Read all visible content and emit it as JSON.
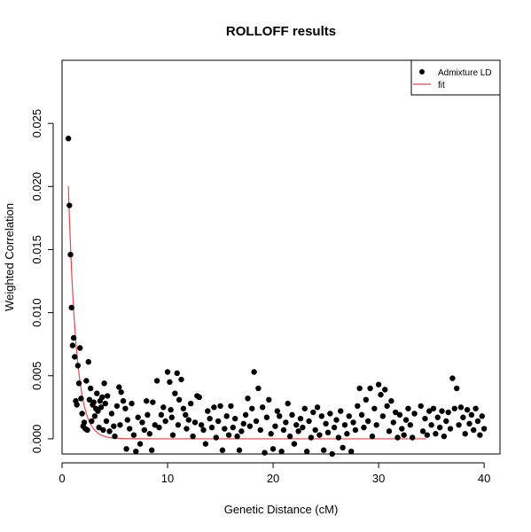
{
  "chart_data": {
    "type": "scatter",
    "title": "ROLLOFF results",
    "xlabel": "Genetic Distance (cM)",
    "ylabel": "Weighted Correlation",
    "xlim": [
      0,
      41.5
    ],
    "ylim": [
      -0.0012,
      0.03
    ],
    "x_ticks": [
      0,
      10,
      20,
      30,
      40
    ],
    "y_ticks": [
      0.0,
      0.005,
      0.01,
      0.015,
      0.02,
      0.025
    ],
    "y_tick_labels": [
      "0.000",
      "0.005",
      "0.010",
      "0.015",
      "0.020",
      "0.025"
    ],
    "grid": false,
    "legend": {
      "placement": "top-right",
      "entries": [
        {
          "label": "Admixture LD",
          "type": "point",
          "color": "#000000"
        },
        {
          "label": "fit",
          "type": "line",
          "color": "#e8474a"
        }
      ]
    },
    "colors": {
      "points": "#000000",
      "fit": "#e8474a"
    },
    "series": [
      {
        "name": "Admixture LD",
        "type": "scatter",
        "points": [
          [
            0.6,
            0.0238
          ],
          [
            0.7,
            0.0185
          ],
          [
            0.8,
            0.0146
          ],
          [
            0.9,
            0.0104
          ],
          [
            1.0,
            0.0074
          ],
          [
            1.1,
            0.008
          ],
          [
            1.2,
            0.0065
          ],
          [
            1.3,
            0.003
          ],
          [
            1.4,
            0.0027
          ],
          [
            1.5,
            0.0058
          ],
          [
            1.6,
            0.0044
          ],
          [
            1.7,
            0.0072
          ],
          [
            1.8,
            0.0032
          ],
          [
            1.9,
            0.002
          ],
          [
            2.0,
            0.001
          ],
          [
            2.1,
            0.0013
          ],
          [
            2.2,
            0.0008
          ],
          [
            2.3,
            0.0046
          ],
          [
            2.4,
            0.0007
          ],
          [
            2.5,
            0.0061
          ],
          [
            2.6,
            0.0031
          ],
          [
            2.7,
            0.004
          ],
          [
            2.8,
            0.0014
          ],
          [
            2.9,
            0.0027
          ],
          [
            3.0,
            0.0029
          ],
          [
            3.1,
            0.0018
          ],
          [
            3.2,
            0.0024
          ],
          [
            3.3,
            0.0036
          ],
          [
            3.4,
            0.0022
          ],
          [
            3.5,
            0.0009
          ],
          [
            3.6,
            0.003
          ],
          [
            3.7,
            0.0025
          ],
          [
            3.8,
            0.0033
          ],
          [
            3.9,
            0.0007
          ],
          [
            4.0,
            0.0044
          ],
          [
            4.1,
            0.0028
          ],
          [
            4.2,
            0.0014
          ],
          [
            4.3,
            0.0034
          ],
          [
            4.5,
            0.0006
          ],
          [
            4.7,
            0.002
          ],
          [
            4.9,
            0.001
          ],
          [
            5.0,
            0.0002
          ],
          [
            5.2,
            0.0026
          ],
          [
            5.4,
            0.0041
          ],
          [
            5.5,
            0.0011
          ],
          [
            5.6,
            0.0037
          ],
          [
            5.8,
            0.003
          ],
          [
            6.0,
            0.0024
          ],
          [
            6.1,
            -0.0008
          ],
          [
            6.2,
            0.0015
          ],
          [
            6.4,
            0.0008
          ],
          [
            6.6,
            0.0028
          ],
          [
            6.8,
            0.0003
          ],
          [
            7.0,
            -0.001
          ],
          [
            7.2,
            0.0017
          ],
          [
            7.4,
            -0.0004
          ],
          [
            7.6,
            0.0013
          ],
          [
            7.8,
            0.0007
          ],
          [
            8.0,
            0.003
          ],
          [
            8.1,
            0.0019
          ],
          [
            8.3,
            0.0004
          ],
          [
            8.5,
            -0.0009
          ],
          [
            8.6,
            0.0029
          ],
          [
            8.8,
            0.0011
          ],
          [
            9.0,
            0.0046
          ],
          [
            9.2,
            0.0009
          ],
          [
            9.4,
            0.0019
          ],
          [
            9.6,
            0.0025
          ],
          [
            9.8,
            0.0014
          ],
          [
            10.0,
            0.0053
          ],
          [
            10.2,
            0.0045
          ],
          [
            10.3,
            0.0023
          ],
          [
            10.4,
            0.0017
          ],
          [
            10.5,
            0.0003
          ],
          [
            10.7,
            0.0036
          ],
          [
            10.9,
            0.0052
          ],
          [
            11.0,
            0.0011
          ],
          [
            11.1,
            0.0031
          ],
          [
            11.3,
            0.0047
          ],
          [
            11.5,
            0.0024
          ],
          [
            11.7,
            0.0019
          ],
          [
            11.8,
            0.0008
          ],
          [
            12.0,
            0.0015
          ],
          [
            12.2,
            0.0028
          ],
          [
            12.4,
            0.0002
          ],
          [
            12.6,
            0.0013
          ],
          [
            12.8,
            0.0034
          ],
          [
            13.0,
            0.0033
          ],
          [
            13.2,
            0.0011
          ],
          [
            13.4,
            0.0007
          ],
          [
            13.6,
            -0.0004
          ],
          [
            13.8,
            0.0022
          ],
          [
            14.0,
            0.0016
          ],
          [
            14.2,
            0.0009
          ],
          [
            14.4,
            0.0025
          ],
          [
            14.6,
            0.0001
          ],
          [
            14.8,
            0.0014
          ],
          [
            15.0,
            0.0026
          ],
          [
            15.2,
            -0.0009
          ],
          [
            15.4,
            0.0008
          ],
          [
            15.6,
            0.0018
          ],
          [
            15.8,
            0.0003
          ],
          [
            16.0,
            0.0026
          ],
          [
            16.2,
            0.0009
          ],
          [
            16.4,
            0.0016
          ],
          [
            16.6,
            0.0002
          ],
          [
            16.8,
            -0.0009
          ],
          [
            17.0,
            0.0006
          ],
          [
            17.2,
            0.0012
          ],
          [
            17.4,
            0.0019
          ],
          [
            17.6,
            0.0032
          ],
          [
            17.8,
            0.001
          ],
          [
            18.0,
            0.0024
          ],
          [
            18.2,
            0.0053
          ],
          [
            18.4,
            0.0014
          ],
          [
            18.6,
            0.004
          ],
          [
            18.8,
            0.0007
          ],
          [
            19.0,
            0.0025
          ],
          [
            19.2,
            -0.0011
          ],
          [
            19.4,
            0.0017
          ],
          [
            19.6,
            0.0031
          ],
          [
            19.8,
            0.0004
          ],
          [
            20.0,
            -0.0008
          ],
          [
            20.2,
            0.001
          ],
          [
            20.4,
            0.0022
          ],
          [
            20.6,
            0.0018
          ],
          [
            20.8,
            -0.001
          ],
          [
            21.0,
            0.0007
          ],
          [
            21.2,
            0.0013
          ],
          [
            21.4,
            0.0028
          ],
          [
            21.6,
            0.0002
          ],
          [
            21.8,
            0.0019
          ],
          [
            22.0,
            -0.0004
          ],
          [
            22.2,
            0.0011
          ],
          [
            22.4,
            0.0006
          ],
          [
            22.6,
            0.0016
          ],
          [
            22.8,
            0.0009
          ],
          [
            23.0,
            0.0024
          ],
          [
            23.2,
            -0.001
          ],
          [
            23.4,
            0.0014
          ],
          [
            23.6,
            0.0001
          ],
          [
            23.8,
            0.0021
          ],
          [
            24.0,
            0.0007
          ],
          [
            24.2,
            0.0025
          ],
          [
            24.4,
            0.0003
          ],
          [
            24.6,
            0.0018
          ],
          [
            24.8,
            -0.0009
          ],
          [
            25.0,
            0.0012
          ],
          [
            25.2,
            0.0005
          ],
          [
            25.4,
            0.002
          ],
          [
            25.6,
            -0.0012
          ],
          [
            25.8,
            0.0009
          ],
          [
            26.0,
            0.0015
          ],
          [
            26.2,
            0.0001
          ],
          [
            26.4,
            0.0022
          ],
          [
            26.6,
            -0.0007
          ],
          [
            26.8,
            0.0011
          ],
          [
            27.0,
            0.0004
          ],
          [
            27.2,
            0.0018
          ],
          [
            27.4,
            -0.001
          ],
          [
            27.6,
            0.0013
          ],
          [
            27.8,
            0.0007
          ],
          [
            28.0,
            0.0026
          ],
          [
            28.2,
            0.004
          ],
          [
            28.4,
            0.0019
          ],
          [
            28.6,
            0.0009
          ],
          [
            28.8,
            0.0031
          ],
          [
            29.0,
            0.0014
          ],
          [
            29.2,
            0.004
          ],
          [
            29.4,
            0.0002
          ],
          [
            29.6,
            0.0024
          ],
          [
            29.8,
            0.0011
          ],
          [
            30.0,
            0.0043
          ],
          [
            30.2,
            0.0035
          ],
          [
            30.4,
            0.0018
          ],
          [
            30.6,
            0.0039
          ],
          [
            30.8,
            0.0026
          ],
          [
            31.0,
            0.0006
          ],
          [
            31.2,
            0.003
          ],
          [
            31.4,
            0.0013
          ],
          [
            31.6,
            0.0021
          ],
          [
            31.8,
            0.0001
          ],
          [
            32.0,
            0.0019
          ],
          [
            32.2,
            0.0008
          ],
          [
            32.4,
            0.0003
          ],
          [
            32.6,
            0.0015
          ],
          [
            32.8,
            0.0024
          ],
          [
            33.0,
            0.0011
          ],
          [
            33.2,
            0.0001
          ],
          [
            33.4,
            0.002
          ],
          [
            34.0,
            0.0026
          ],
          [
            34.2,
            0.0006
          ],
          [
            34.4,
            0.0016
          ],
          [
            34.6,
            0.0003
          ],
          [
            34.8,
            0.0022
          ],
          [
            35.0,
            0.0011
          ],
          [
            35.2,
            0.0024
          ],
          [
            35.4,
            0.0004
          ],
          [
            35.6,
            0.0017
          ],
          [
            35.8,
            0.0009
          ],
          [
            36.0,
            0.0022
          ],
          [
            36.2,
            0.0002
          ],
          [
            36.4,
            0.0014
          ],
          [
            36.6,
            0.0021
          ],
          [
            36.8,
            0.0008
          ],
          [
            37.0,
            0.0048
          ],
          [
            37.2,
            0.0024
          ],
          [
            37.4,
            0.004
          ],
          [
            37.6,
            0.0011
          ],
          [
            37.8,
            0.0025
          ],
          [
            38.0,
            0.0017
          ],
          [
            38.2,
            0.0004
          ],
          [
            38.4,
            0.0023
          ],
          [
            38.6,
            0.0012
          ],
          [
            38.8,
            0.0019
          ],
          [
            39.0,
            0.0007
          ],
          [
            39.2,
            0.0024
          ],
          [
            39.4,
            0.0014
          ],
          [
            39.6,
            0.0003
          ],
          [
            39.8,
            0.0018
          ],
          [
            40.0,
            0.0008
          ]
        ]
      },
      {
        "name": "fit",
        "type": "line",
        "model": "exponential_decay",
        "amplitude": 0.045,
        "rate": 1.35,
        "offset": 0.0,
        "x_range": [
          0.6,
          34.5
        ]
      }
    ]
  }
}
